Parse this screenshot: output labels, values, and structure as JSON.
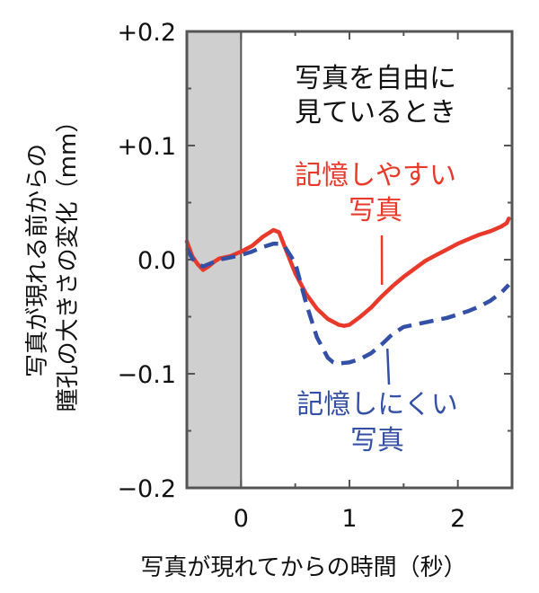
{
  "chart_data": {
    "type": "line",
    "xlabel": "写真が現れてからの時間（秒）",
    "ylabel_lines": [
      "写真が現れる前からの",
      "瞳孔の大きさの変化（mm）"
    ],
    "xlim": [
      -0.5,
      2.5
    ],
    "ylim": [
      -0.2,
      0.2
    ],
    "xticks": [
      {
        "value": 0,
        "label": "0"
      },
      {
        "value": 1,
        "label": "1"
      },
      {
        "value": 2,
        "label": "2"
      }
    ],
    "yticks": [
      {
        "value": 0.2,
        "label": "+0.2"
      },
      {
        "value": 0.1,
        "label": "+0.1"
      },
      {
        "value": 0.0,
        "label": "0.0"
      },
      {
        "value": -0.1,
        "label": "−0.1"
      },
      {
        "value": -0.2,
        "label": "−0.2"
      }
    ],
    "baseline_shade": {
      "x_range": [
        -0.5,
        0
      ],
      "color": "#cfcfcf"
    },
    "condition_label_lines": [
      "写真を自由に",
      "見ているとき"
    ],
    "series": [
      {
        "name": "記憶しやすい写真",
        "label_lines": [
          "記憶しやすい",
          "写真"
        ],
        "color": "#e8392b",
        "style": "solid",
        "x": [
          -0.5,
          -0.45,
          -0.4,
          -0.35,
          -0.3,
          -0.25,
          -0.2,
          -0.1,
          0.0,
          0.1,
          0.2,
          0.3,
          0.35,
          0.4,
          0.5,
          0.6,
          0.7,
          0.8,
          0.9,
          0.95,
          1.0,
          1.1,
          1.2,
          1.3,
          1.4,
          1.5,
          1.6,
          1.7,
          1.8,
          1.9,
          2.0,
          2.1,
          2.2,
          2.3,
          2.4,
          2.45,
          2.47
        ],
        "y": [
          0.016,
          0.003,
          -0.004,
          -0.009,
          -0.006,
          -0.002,
          0.001,
          0.003,
          0.007,
          0.012,
          0.02,
          0.026,
          0.024,
          0.012,
          -0.012,
          -0.03,
          -0.043,
          -0.052,
          -0.057,
          -0.058,
          -0.057,
          -0.05,
          -0.042,
          -0.032,
          -0.023,
          -0.015,
          -0.008,
          -0.001,
          0.004,
          0.009,
          0.014,
          0.018,
          0.022,
          0.025,
          0.029,
          0.032,
          0.036
        ]
      },
      {
        "name": "記憶しにくい写真",
        "label_lines": [
          "記憶しにくい",
          "写真"
        ],
        "color": "#3450a6",
        "style": "dashed",
        "x": [
          -0.5,
          -0.45,
          -0.4,
          -0.35,
          -0.3,
          -0.25,
          -0.2,
          -0.1,
          0.0,
          0.1,
          0.2,
          0.3,
          0.35,
          0.4,
          0.5,
          0.6,
          0.7,
          0.8,
          0.85,
          0.9,
          1.0,
          1.1,
          1.2,
          1.3,
          1.4,
          1.5,
          1.6,
          1.7,
          1.8,
          1.9,
          2.0,
          2.1,
          2.2,
          2.3,
          2.4,
          2.47
        ],
        "y": [
          0.01,
          0.001,
          -0.004,
          -0.006,
          -0.004,
          -0.002,
          0.0,
          0.002,
          0.004,
          0.007,
          0.011,
          0.014,
          0.014,
          0.012,
          -0.003,
          -0.038,
          -0.068,
          -0.086,
          -0.09,
          -0.091,
          -0.09,
          -0.087,
          -0.082,
          -0.074,
          -0.065,
          -0.059,
          -0.057,
          -0.055,
          -0.053,
          -0.051,
          -0.048,
          -0.045,
          -0.041,
          -0.036,
          -0.029,
          -0.022
        ]
      }
    ]
  }
}
